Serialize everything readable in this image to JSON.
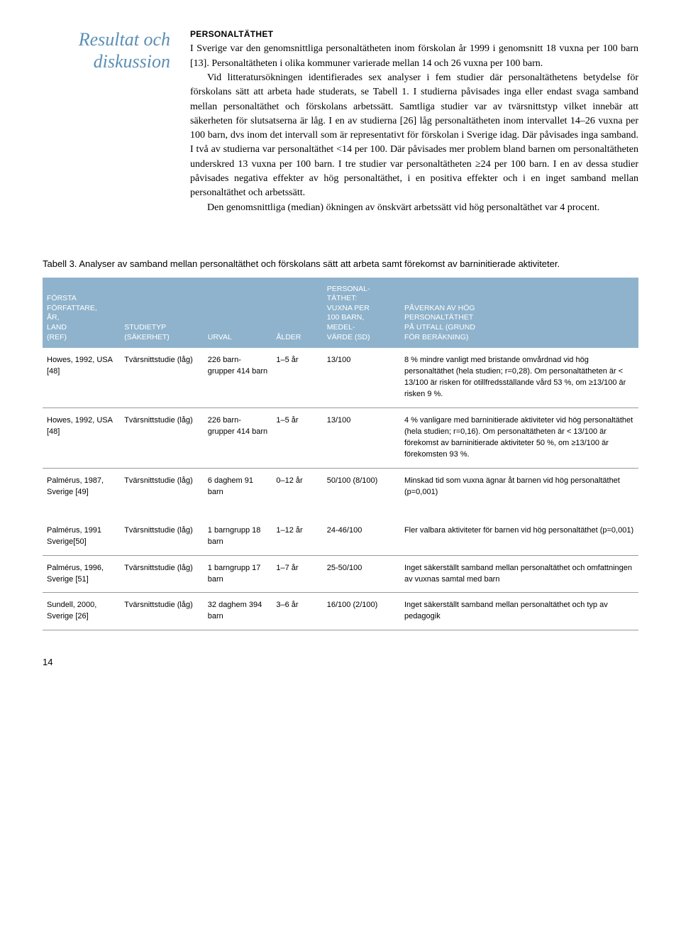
{
  "sidebar_title": "Resultat och diskussion",
  "section_heading": "PERSONALTÄTHET",
  "paragraphs": [
    "I Sverige var den genomsnittliga personaltätheten inom förskolan år 1999 i genomsnitt 18 vuxna per 100 barn [13]. Personaltätheten i olika kommuner varierade mellan 14 och 26 vuxna per 100 barn.",
    "Vid litteratursökningen identifierades sex analyser i fem studier där personaltäthetens betydelse för förskolans sätt att arbeta hade studerats, se Tabell 1. I studierna påvisades inga eller endast svaga samband mellan personaltäthet och förskolans arbetssätt. Samtliga studier var av tvärsnittstyp vilket innebär att säkerheten för slutsatserna är låg. I en av studierna [26] låg personaltätheten inom intervallet 14–26 vuxna per 100 barn, dvs inom det intervall som är representativt för förskolan i Sverige idag. Där påvisades inga samband. I två av studierna var personaltäthet <14 per 100. Där påvisades mer problem bland barnen om personaltätheten underskred 13 vuxna per 100 barn. I tre studier var personaltätheten ≥24 per 100 barn. I en av dessa studier påvisades negativa effekter av hög personaltäthet, i en positiva effekter och i en inget samband mellan personaltäthet och arbetssätt.",
    "Den genomsnittliga (median) ökningen av önskvärt arbetssätt vid hög personaltäthet var 4 procent."
  ],
  "table_caption": "Tabell 3. Analyser av samband mellan personaltäthet och förskolans sätt att arbeta samt förekomst av barninitierade aktiviteter.",
  "table_headers": [
    "FÖRSTA\nFÖRFATTARE,\nÅR,\nLAND\n(REF)",
    "STUDIETYP\n(SÄKERHET)",
    "URVAL",
    "ÅLDER",
    "PERSONAL-\nTÄTHET:\nVUXNA PER\n100 BARN,\nMEDEL-\nVÄRDE (SD)",
    "PÅVERKAN AV HÖG\nPERSONALTÄTHET\nPÅ UTFALL (GRUND\nFÖR BERÄKNING)"
  ],
  "rows": [
    {
      "a": "Howes, 1992, USA [48]",
      "b": "Tvärsnittstudie (låg)",
      "c": "226 barn-grupper 414 barn",
      "d": "1–5 år",
      "e": "13/100",
      "f": "8 % mindre vanligt med bristande omvårdnad vid hög personaltäthet (hela studien; r=0,28). Om personaltätheten är < 13/100 är risken för otillfredsställande vård 53 %, om ≥13/100 är risken 9 %."
    },
    {
      "a": "Howes, 1992, USA [48]",
      "b": "Tvärsnittstudie (låg)",
      "c": "226 barn-grupper 414 barn",
      "d": "1–5 år",
      "e": "13/100",
      "f": "4 % vanligare med barninitierade aktiviteter vid hög personaltäthet (hela studien; r=0,16). Om personaltätheten är < 13/100 är förekomst av barninitierade aktiviteter 50 %, om ≥13/100 är förekomsten 93 %."
    },
    {
      "a": "Palmérus, 1987, Sverige [49]",
      "b": "Tvärsnittstudie (låg)",
      "c": "6 daghem 91 barn",
      "d": "0–12 år",
      "e": "50/100 (8/100)",
      "f": "Minskad tid som vuxna ägnar åt barnen vid hög personaltäthet (p=0,001)"
    },
    {
      "a": "Palmérus, 1991 Sverige[50]",
      "b": "Tvärsnittstudie (låg)",
      "c": "1 barngrupp 18 barn",
      "d": "1–12 år",
      "e": "24-46/100",
      "f": "Fler valbara aktiviteter för barnen vid hög personaltäthet (p=0,001)"
    },
    {
      "a": "Palmérus, 1996, Sverige [51]",
      "b": "Tvärsnittstudie (låg)",
      "c": "1 barngrupp 17 barn",
      "d": "1–7 år",
      "e": "25-50/100",
      "f": "Inget säkerställt samband mellan personaltäthet och omfattningen av vuxnas samtal med barn"
    },
    {
      "a": "Sundell, 2000, Sverige [26]",
      "b": "Tvärsnittstudie (låg)",
      "c": "32 daghem 394 barn",
      "d": "3–6 år",
      "e": "16/100 (2/100)",
      "f": "Inget säkerställt samband mellan personaltäthet och typ av pedagogik"
    }
  ],
  "header_bg": "#8fb3cc",
  "page_number": "14"
}
